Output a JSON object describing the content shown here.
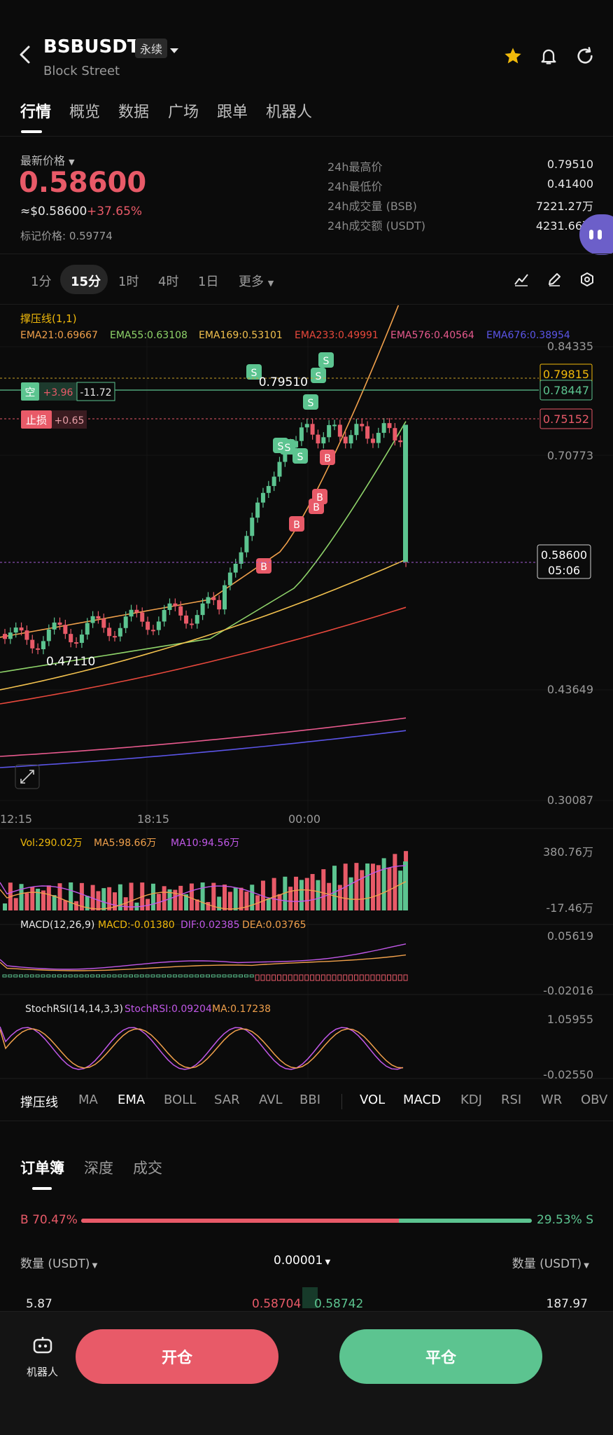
{
  "header": {
    "symbol": "BSBUSDT",
    "contract_tag": "永续",
    "subtitle": "Block Street",
    "icons": [
      "back-arrow-icon",
      "dropdown-caret-icon",
      "star-icon",
      "bell-icon",
      "refresh-icon"
    ],
    "star_color": "#f0b90b"
  },
  "tabs": [
    "行情",
    "概览",
    "数据",
    "广场",
    "跟单",
    "机器人"
  ],
  "price": {
    "label": "最新价格",
    "last": "0.58600",
    "usd": "≈$0.58600",
    "change": "+37.65%",
    "mark": "标记价格: 0.59774"
  },
  "stats": [
    {
      "label": "24h最高价",
      "value": "0.79510"
    },
    {
      "label": "24h最低价",
      "value": "0.41400"
    },
    {
      "label": "24h成交量 (BSB)",
      "value": "7221.27万"
    },
    {
      "label": "24h成交额 (USDT)",
      "value": "4231.66万"
    }
  ],
  "timeframes": [
    "1分",
    "15分",
    "1时",
    "4时",
    "1日",
    "更多"
  ],
  "chart": {
    "indicator_header": "撑压线(1,1)",
    "ema_labels": [
      {
        "text": "EMA21:0.69667",
        "color": "#f0a04b"
      },
      {
        "text": "EMA55:0.63108",
        "color": "#8fd46a"
      },
      {
        "text": "EMA169:0.53101",
        "color": "#f2c14e"
      },
      {
        "text": "EMA233:0.49991",
        "color": "#e8483c"
      },
      {
        "text": "EMA576:0.40564",
        "color": "#e85a8e"
      },
      {
        "text": "EMA676:0.38954",
        "color": "#5b55e8"
      }
    ],
    "y_labels": [
      "0.84335",
      "0.70773",
      "0.43649",
      "0.30087"
    ],
    "high_label": "0.79510",
    "low_label": "0.47110",
    "tag_levels": [
      {
        "text": "0.79815",
        "color": "#f0b90b"
      },
      {
        "text": "0.78447",
        "color": "#5cc490"
      },
      {
        "text": "0.75152",
        "color": "#e85a68"
      }
    ],
    "current_price": "0.58600",
    "countdown": "05:06",
    "short_position": {
      "side": "空",
      "pnl": "+3.96",
      "qty": "-11.72"
    },
    "stop_loss": {
      "label": "止损",
      "value": "+0.65"
    },
    "x_labels": [
      "12:15",
      "18:15",
      "00:00"
    ],
    "markers": [
      "S",
      "S",
      "S",
      "S",
      "S",
      "S",
      "S",
      "B",
      "B",
      "B",
      "B",
      "B"
    ]
  },
  "volume": {
    "vol": "Vol:290.02万",
    "ma5": "MA5:98.66万",
    "ma10": "MA10:94.56万",
    "top": "380.76万",
    "bottom": "-17.46万"
  },
  "macd": {
    "header": "MACD(12,26,9)",
    "macd": "MACD:-0.01380",
    "dif": "DIF:0.02385",
    "dea": "DEA:0.03765",
    "top": "0.05619",
    "bottom": "-0.02016"
  },
  "stochrsi": {
    "header": "StochRSI(14,14,3,3)",
    "val": "StochRSI:0.09204",
    "ma": "MA:0.17238",
    "top": "1.05955",
    "bottom": "-0.02550"
  },
  "toolbar": [
    "撑压线",
    "MA",
    "EMA",
    "BOLL",
    "SAR",
    "AVL",
    "BBI",
    "VOL",
    "MACD",
    "KDJ",
    "RSI",
    "WR",
    "OBV"
  ],
  "orderbook": {
    "tabs": [
      "订单簿",
      "深度",
      "成交"
    ],
    "buy_ratio": "B 70.47%",
    "sell_ratio": "29.53% S",
    "buy_fraction": 0.7047,
    "qty_label_left": "数量 (USDT)",
    "precision": "0.00001",
    "qty_label_right": "数量 (USDT)",
    "row": {
      "bid_qty": "5.87",
      "bid_price": "0.58704",
      "ask_price": "0.58742",
      "ask_qty": "187.97"
    }
  },
  "bottom": {
    "robot_label": "机器人",
    "open_label": "开仓",
    "close_label": "平仓",
    "open_color": "#e85a68",
    "close_color": "#5cc490"
  }
}
